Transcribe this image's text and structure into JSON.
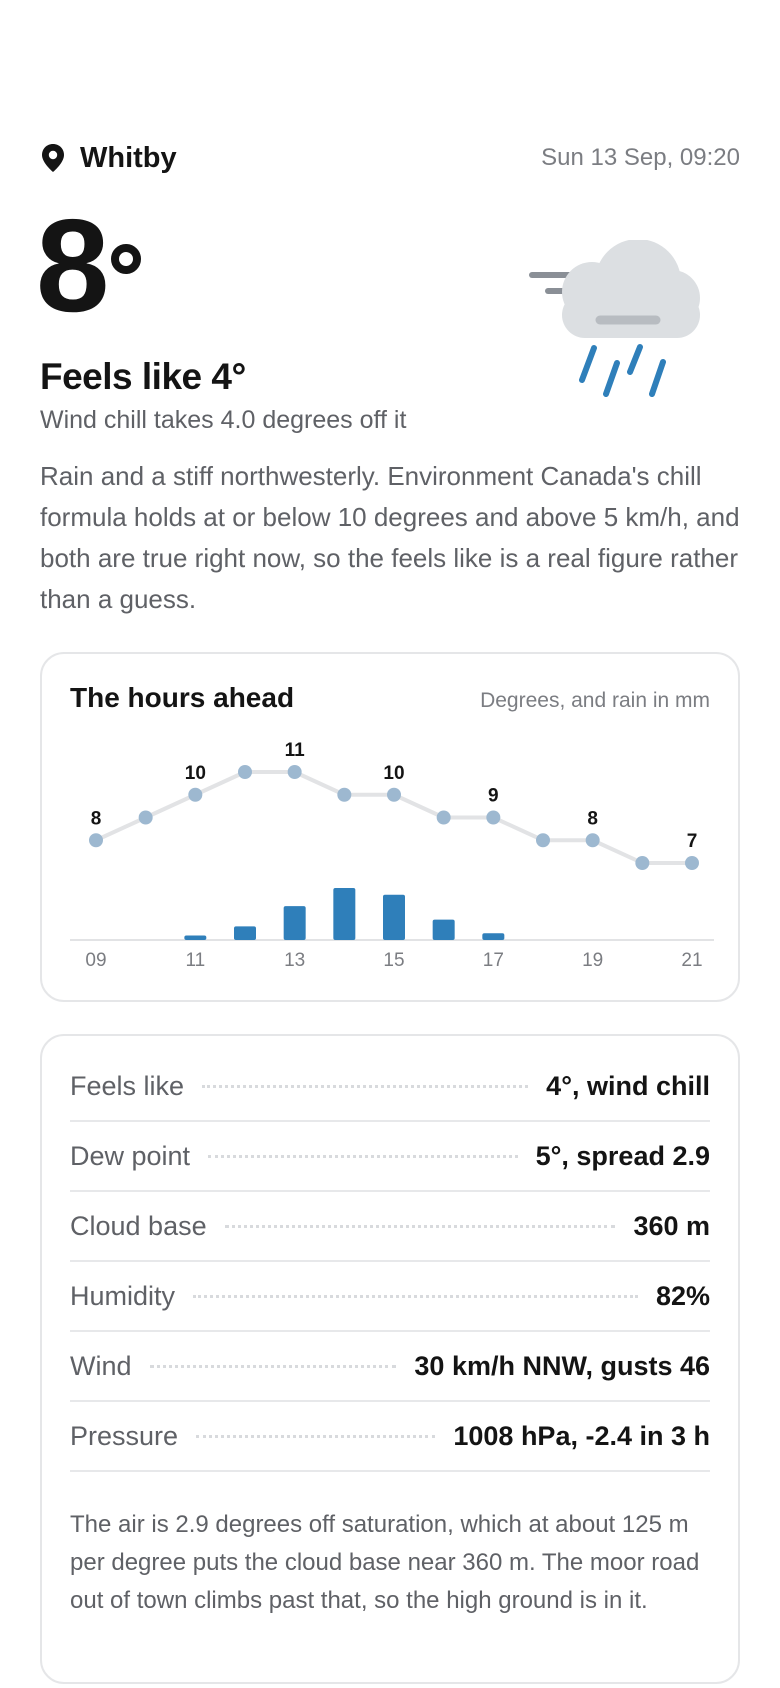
{
  "header": {
    "location": "Whitby",
    "datetime": "Sun 13 Sep, 09:20",
    "location_icon": "location-pin-icon"
  },
  "current": {
    "temperature": "8",
    "condition_icon": "rain-wind-cloud-icon",
    "feels_like_title": "Feels like 4°",
    "chill_sub": "Wind chill takes 4.0 degrees off it",
    "description": "Rain and a stiff northwesterly. Environment Canada's chill formula holds at or below 10 degrees and above 5 km/h, and both are true right now, so the feels like is a real figure rather than a guess."
  },
  "hours_card": {
    "title": "The hours ahead",
    "note": "Degrees, and rain in mm"
  },
  "chart_data": {
    "type": "line",
    "title": "The hours ahead",
    "subtitle": "Degrees, and rain in mm",
    "x": [
      9,
      10,
      11,
      12,
      13,
      14,
      15,
      16,
      17,
      18,
      19,
      20,
      21
    ],
    "x_tick_labels": [
      "09",
      "",
      "11",
      "",
      "13",
      "",
      "15",
      "",
      "17",
      "",
      "19",
      "",
      "21"
    ],
    "series": [
      {
        "type": "line",
        "values": [
          8,
          9,
          10,
          11,
          11,
          10,
          10,
          9,
          9,
          8,
          8,
          7,
          7
        ]
      },
      {
        "type": "bar",
        "values": [
          0,
          0,
          0.2,
          0.6,
          1.5,
          2.3,
          2.0,
          0.9,
          0.3,
          0,
          0,
          0,
          0
        ]
      }
    ],
    "temp_labels": [
      "8",
      "",
      "10",
      "",
      "11",
      "",
      "10",
      "",
      "9",
      "",
      "8",
      "",
      "7"
    ],
    "colors": {
      "line": "#e2e3e5",
      "points": "#9db8d0",
      "bars": "#2f7fba"
    },
    "grid": false
  },
  "details": {
    "rows": [
      {
        "label": "Feels like",
        "value": "4°, wind chill"
      },
      {
        "label": "Dew point",
        "value": "5°, spread 2.9"
      },
      {
        "label": "Cloud base",
        "value": "360 m"
      },
      {
        "label": "Humidity",
        "value": "82%"
      },
      {
        "label": "Wind",
        "value": "30 km/h NNW, gusts 46"
      },
      {
        "label": "Pressure",
        "value": "1008 hPa, -2.4 in 3 h"
      }
    ],
    "note": "The air is 2.9 degrees off saturation, which at about 125 m per degree puts the cloud base near 360 m. The moor road out of town climbs past that, so the high ground is in it."
  }
}
